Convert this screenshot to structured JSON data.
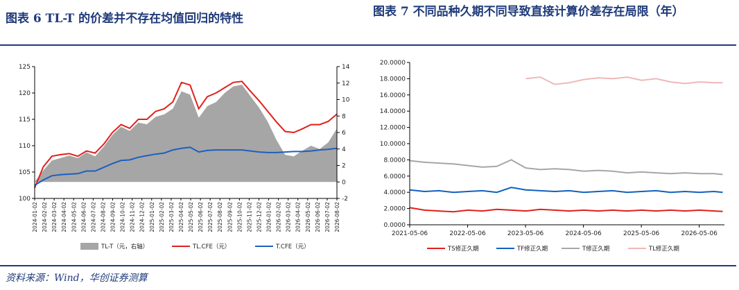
{
  "figures": {
    "fig6_title": "图表 6   TL-T 的价差并不存在均值回归的特性",
    "fig7_title": "图表 7   不同品种久期不同导致直接计算价差存在局限（年）",
    "source": "资料来源：Wind，华创证券测算"
  },
  "colors": {
    "accent": "#1f3a7a",
    "tl": "#e0201b",
    "t": "#1c5fbf",
    "spread": "#a6a6a6",
    "ts": "#e0201b",
    "tf": "#1060c0",
    "tdur": "#a6a6a6",
    "tldur": "#f0b8b8"
  },
  "chart_data": [
    {
      "type": "line",
      "title": "",
      "x_ticks": [
        "2024-01-02",
        "2024-02-02",
        "2024-03-02",
        "2024-04-02",
        "2024-05-02",
        "2024-06-02",
        "2024-07-02",
        "2024-08-02",
        "2024-09-02",
        "2024-10-02",
        "2024-11-02",
        "2024-12-02",
        "2025-01-02",
        "2025-02-02",
        "2025-03-02",
        "2025-04-02",
        "2025-05-02",
        "2025-06-02",
        "2025-07-02",
        "2025-08-02",
        "2025-09-02",
        "2025-10-02",
        "2025-11-02",
        "2025-12-02",
        "2026-01-02",
        "2026-02-02",
        "2026-03-02",
        "2026-04-02",
        "2026-05-02",
        "2026-06-02",
        "2026-07-02",
        "2026-08-02"
      ],
      "ylim_left": [
        100,
        125
      ],
      "yticks_left": [
        100,
        105,
        110,
        115,
        120,
        125
      ],
      "ylim_right": [
        -2,
        14
      ],
      "yticks_right": [
        -2,
        0,
        2,
        4,
        6,
        8,
        10,
        12,
        14
      ],
      "legend": [
        "TL-T（元，右轴）",
        "TL.CFE（元）",
        "T.CFE（元）"
      ],
      "series": [
        {
          "name": "TL-T（元，右轴）",
          "axis": "right",
          "kind": "area",
          "values": [
            0.0,
            1.4,
            2.6,
            2.9,
            3.2,
            2.9,
            3.6,
            3.1,
            4.3,
            5.7,
            6.7,
            6.2,
            7.2,
            7.0,
            7.9,
            8.2,
            8.9,
            11.0,
            10.6,
            7.8,
            9.2,
            9.7,
            10.8,
            11.6,
            11.8,
            10.4,
            9.0,
            7.3,
            5.1,
            3.3,
            3.1,
            3.8,
            4.4,
            4.0,
            4.8,
            6.5
          ]
        },
        {
          "name": "TL.CFE（元）",
          "axis": "left",
          "kind": "line",
          "values": [
            102.0,
            106.0,
            108.0,
            108.3,
            108.5,
            108.0,
            109.0,
            108.6,
            110.3,
            112.5,
            114.0,
            113.3,
            115.0,
            115.0,
            116.5,
            117.0,
            118.3,
            122.0,
            121.5,
            117.0,
            119.3,
            120.0,
            121.0,
            122.0,
            122.2,
            120.3,
            118.5,
            116.5,
            114.5,
            112.7,
            112.5,
            113.2,
            114.0,
            114.0,
            114.6,
            116.0
          ]
        },
        {
          "name": "T.CFE（元）",
          "axis": "left",
          "kind": "line",
          "values": [
            102.5,
            103.5,
            104.3,
            104.5,
            104.6,
            104.7,
            105.2,
            105.2,
            105.9,
            106.6,
            107.2,
            107.3,
            107.8,
            108.1,
            108.4,
            108.6,
            109.2,
            109.5,
            109.7,
            108.8,
            109.1,
            109.2,
            109.2,
            109.2,
            109.2,
            109.0,
            108.8,
            108.7,
            108.7,
            108.8,
            108.9,
            108.9,
            109.0,
            109.2,
            109.3,
            109.5
          ]
        }
      ]
    },
    {
      "type": "line",
      "title": "",
      "x_ticks": [
        "2021-05-06",
        "2022-05-06",
        "2023-05-06",
        "2024-05-06",
        "2025-05-06",
        "2026-05-06"
      ],
      "ylim": [
        0,
        20
      ],
      "yticks": [
        "0.0000",
        "2.0000",
        "4.0000",
        "6.0000",
        "8.0000",
        "10.0000",
        "12.0000",
        "14.0000",
        "16.0000",
        "18.0000",
        "20.0000"
      ],
      "legend": [
        "TS修正久期",
        "TF修正久期",
        "T修正久期",
        "TL修正久期"
      ],
      "series": [
        {
          "name": "TS修正久期",
          "x": [
            2021.35,
            2021.6,
            2021.85,
            2022.1,
            2022.35,
            2022.6,
            2022.85,
            2023.1,
            2023.35,
            2023.6,
            2023.85,
            2024.1,
            2024.35,
            2024.6,
            2024.85,
            2025.1,
            2025.35,
            2025.6,
            2025.85,
            2026.1,
            2026.35,
            2026.6,
            2026.75
          ],
          "values": [
            2.1,
            1.8,
            1.7,
            1.6,
            1.8,
            1.7,
            1.9,
            1.8,
            1.7,
            1.9,
            1.8,
            1.7,
            1.8,
            1.7,
            1.8,
            1.7,
            1.8,
            1.7,
            1.8,
            1.7,
            1.8,
            1.7,
            1.65
          ]
        },
        {
          "name": "TF修正久期",
          "x": [
            2021.35,
            2021.6,
            2021.85,
            2022.1,
            2022.35,
            2022.6,
            2022.85,
            2023.1,
            2023.35,
            2023.6,
            2023.85,
            2024.1,
            2024.35,
            2024.6,
            2024.85,
            2025.1,
            2025.35,
            2025.6,
            2025.85,
            2026.1,
            2026.35,
            2026.6,
            2026.75
          ],
          "values": [
            4.3,
            4.1,
            4.2,
            4.0,
            4.1,
            4.2,
            4.0,
            4.6,
            4.3,
            4.2,
            4.1,
            4.2,
            4.0,
            4.1,
            4.2,
            4.0,
            4.1,
            4.2,
            4.0,
            4.1,
            4.0,
            4.1,
            4.0
          ]
        },
        {
          "name": "T修正久期",
          "x": [
            2021.35,
            2021.6,
            2021.85,
            2022.1,
            2022.35,
            2022.6,
            2022.85,
            2023.1,
            2023.35,
            2023.6,
            2023.85,
            2024.1,
            2024.35,
            2024.6,
            2024.85,
            2025.1,
            2025.35,
            2025.6,
            2025.85,
            2026.1,
            2026.35,
            2026.6,
            2026.75
          ],
          "values": [
            7.9,
            7.7,
            7.6,
            7.5,
            7.3,
            7.1,
            7.2,
            8.0,
            7.0,
            6.8,
            6.9,
            6.8,
            6.6,
            6.7,
            6.6,
            6.4,
            6.5,
            6.4,
            6.3,
            6.4,
            6.3,
            6.3,
            6.2
          ]
        },
        {
          "name": "TL修正久期",
          "x": [
            2023.35,
            2023.6,
            2023.85,
            2024.1,
            2024.35,
            2024.6,
            2024.85,
            2025.1,
            2025.35,
            2025.6,
            2025.85,
            2026.1,
            2026.35,
            2026.6,
            2026.75
          ],
          "values": [
            18.0,
            18.2,
            17.3,
            17.5,
            17.9,
            18.1,
            18.0,
            18.2,
            17.8,
            18.0,
            17.6,
            17.4,
            17.6,
            17.5,
            17.5
          ]
        }
      ]
    }
  ]
}
